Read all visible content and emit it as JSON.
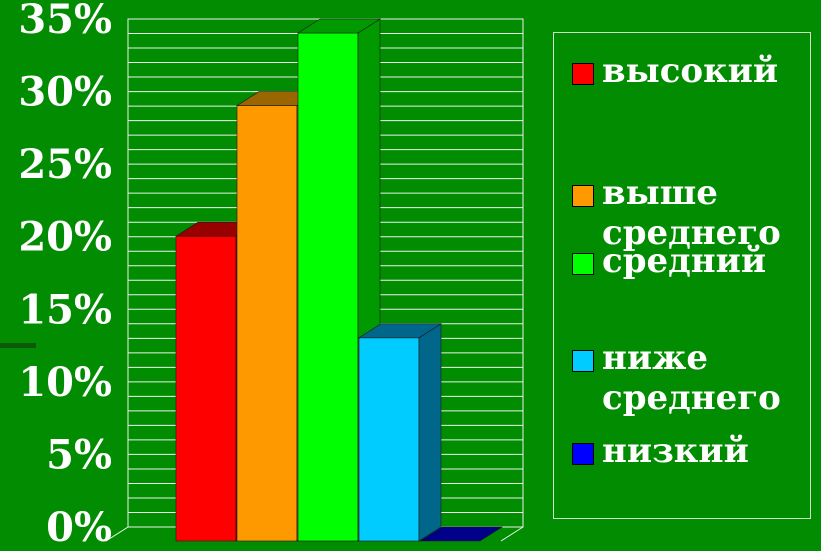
{
  "chart_data": {
    "type": "bar",
    "categories": [
      "высокий",
      "выше\nсреднего",
      "средний",
      "ниже\nсреднего",
      "низкий"
    ],
    "values": [
      21,
      30,
      35,
      14,
      0
    ],
    "colors": [
      "#ff0000",
      "#ff9900",
      "#00ff00",
      "#00ccff",
      "#0000ff"
    ],
    "side_colors": [
      "#990000",
      "#996600",
      "#009900",
      "#00668a",
      "#00008a"
    ],
    "ylim": [
      0,
      35
    ],
    "yticks": [
      "0%",
      "5%",
      "10%",
      "15%",
      "20%",
      "25%",
      "30%",
      "35%"
    ],
    "ytick_values": [
      0,
      5,
      10,
      15,
      20,
      25,
      30,
      35
    ],
    "grid": true,
    "legend_position": "right",
    "style": "3d"
  }
}
